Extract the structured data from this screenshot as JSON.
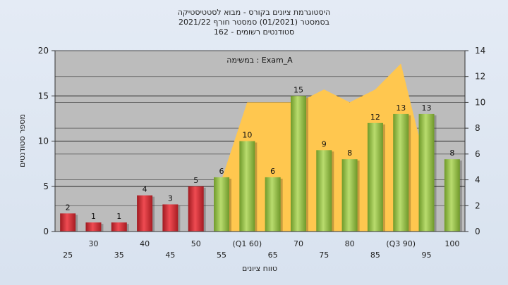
{
  "chart_data": {
    "type": "bar",
    "title_lines": [
      "היסטוגרמת ציונים בקורס - מבוא לסטטיסטיקה",
      "בסמסטר  (01/2021)  סמסטר חורף 2021/22",
      "סטודנטים רשומים - 162"
    ],
    "series_label": "במשימה : Exam_A",
    "xlabel": "טווח ציונים",
    "ylabel": "מספר סטודנטים",
    "ylim": [
      0,
      20
    ],
    "y_ticks": [
      0,
      5,
      10,
      15,
      20
    ],
    "y2lim": [
      0,
      14
    ],
    "y2_ticks": [
      0,
      2,
      4,
      6,
      8,
      10,
      12,
      14
    ],
    "categories": [
      "25",
      "30",
      "35",
      "40",
      "45",
      "50",
      "55",
      "(Q1 60)",
      "65",
      "70",
      "75",
      "80",
      "85",
      "(Q3 90)",
      "95",
      "100"
    ],
    "values": [
      2,
      1,
      1,
      4,
      3,
      5,
      6,
      10,
      6,
      15,
      9,
      8,
      12,
      13,
      13,
      8
    ],
    "bar_colors": [
      "red",
      "red",
      "red",
      "red",
      "red",
      "red",
      "green",
      "green",
      "green",
      "green",
      "green",
      "green",
      "green",
      "green",
      "green",
      "green"
    ],
    "area_series": {
      "type": "area",
      "axis": "y2",
      "points": [
        {
          "category": "55",
          "value": 4
        },
        {
          "category": "(Q1 60)",
          "value": 10
        },
        {
          "category": "65",
          "value": 10
        },
        {
          "category": "70",
          "value": 10
        },
        {
          "category": "75",
          "value": 11
        },
        {
          "category": "80",
          "value": 10
        },
        {
          "category": "85",
          "value": 11
        },
        {
          "category": "(Q3 90)",
          "value": 13
        },
        {
          "category": "95",
          "value": 5
        }
      ]
    },
    "grid": true,
    "colors": {
      "red_bar": "#d6333a",
      "green_bar": "#8dbb3e",
      "area": "#ffc74f",
      "plot_bg": "#b9b9b9",
      "page_bg": "#dde6f1"
    }
  }
}
